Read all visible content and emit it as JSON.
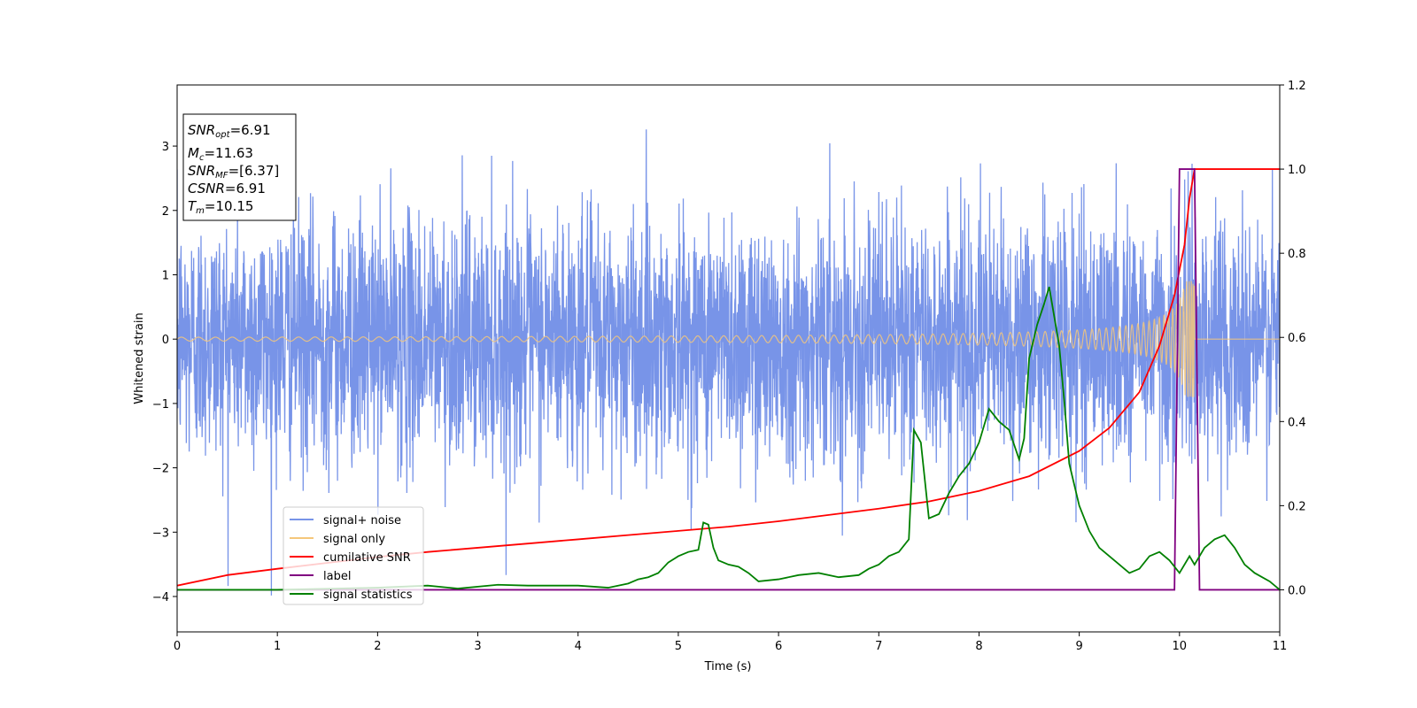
{
  "chart_data": {
    "type": "line",
    "xlabel": "Time (s)",
    "ylabel": "Whitened strain",
    "xlim": [
      0,
      11
    ],
    "ylim": [
      -4.55,
      3.95
    ],
    "y2lim": [
      -0.1,
      1.2
    ],
    "x_ticks": [
      0,
      1,
      2,
      3,
      4,
      5,
      6,
      7,
      8,
      9,
      10,
      11
    ],
    "y_ticks": [
      -4,
      -3,
      -2,
      -1,
      0,
      1,
      2,
      3
    ],
    "y_tick_labels": [
      "−4",
      "−3",
      "−2",
      "−1",
      "0",
      "1",
      "2",
      "3"
    ],
    "y2_ticks": [
      0.0,
      0.2,
      0.4,
      0.6,
      0.8,
      1.0,
      1.2
    ],
    "y2_tick_labels": [
      "0.0",
      "0.2",
      "0.4",
      "0.6",
      "0.8",
      "1.0",
      "1.2"
    ],
    "grid": false,
    "legend_position": "lower-left",
    "annotations": {
      "snr_opt": {
        "base": "SNR",
        "sub": "opt",
        "value": "=6.91"
      },
      "mc": {
        "base": "M",
        "sub": "c",
        "value": "=11.63"
      },
      "snr_mf": {
        "base": "SNR",
        "sub": "MF",
        "value": "=[6.37]"
      },
      "csnr": {
        "base": "CSNR",
        "sub": "",
        "value": "=6.91"
      },
      "tm": {
        "base": "T",
        "sub": "m",
        "value": "=10.15"
      }
    },
    "series": [
      {
        "name": "signal+ noise",
        "color": "#7894e8",
        "axis": "left",
        "kind": "noise",
        "std": 0.95
      },
      {
        "name": "signal only",
        "color": "#f5c77a",
        "axis": "left",
        "kind": "chirp",
        "merger": 10.15
      },
      {
        "name": "cumilative SNR",
        "color": "#ff0000",
        "axis": "right",
        "x": [
          0,
          0.5,
          1,
          1.5,
          2,
          2.5,
          3,
          3.5,
          4,
          4.5,
          5,
          5.5,
          6,
          6.5,
          7,
          7.5,
          8,
          8.5,
          9,
          9.3,
          9.6,
          9.8,
          9.95,
          10.05,
          10.1,
          10.15,
          10.5,
          11
        ],
        "y": [
          0.01,
          0.035,
          0.05,
          0.064,
          0.078,
          0.09,
          0.1,
          0.11,
          0.12,
          0.13,
          0.14,
          0.15,
          0.163,
          0.178,
          0.193,
          0.21,
          0.235,
          0.27,
          0.33,
          0.385,
          0.47,
          0.58,
          0.7,
          0.82,
          0.93,
          1.0,
          1.0,
          1.0
        ]
      },
      {
        "name": "label",
        "color": "#800080",
        "axis": "right",
        "x": [
          0,
          9.95,
          10.0,
          10.05,
          10.15,
          10.2,
          11
        ],
        "y": [
          0,
          0,
          1.0,
          1.0,
          1.0,
          0,
          0
        ]
      },
      {
        "name": "signal statistics",
        "color": "#008000",
        "axis": "right",
        "x": [
          0,
          1,
          2,
          2.5,
          2.8,
          3.2,
          3.5,
          4.0,
          4.3,
          4.5,
          4.6,
          4.7,
          4.8,
          4.9,
          5.0,
          5.1,
          5.2,
          5.25,
          5.3,
          5.35,
          5.4,
          5.5,
          5.6,
          5.7,
          5.8,
          6.0,
          6.2,
          6.4,
          6.6,
          6.8,
          6.9,
          7.0,
          7.1,
          7.2,
          7.3,
          7.35,
          7.42,
          7.5,
          7.6,
          7.7,
          7.8,
          7.9,
          8.0,
          8.1,
          8.2,
          8.3,
          8.4,
          8.45,
          8.5,
          8.58,
          8.65,
          8.7,
          8.75,
          8.8,
          8.85,
          8.9,
          9.0,
          9.1,
          9.2,
          9.3,
          9.4,
          9.5,
          9.6,
          9.7,
          9.8,
          9.9,
          10.0,
          10.1,
          10.15,
          10.25,
          10.35,
          10.45,
          10.55,
          10.65,
          10.75,
          10.9,
          11.0
        ],
        "y": [
          0.0,
          0.0,
          0.005,
          0.01,
          0.003,
          0.012,
          0.01,
          0.01,
          0.005,
          0.015,
          0.025,
          0.03,
          0.04,
          0.065,
          0.08,
          0.09,
          0.095,
          0.16,
          0.155,
          0.1,
          0.07,
          0.06,
          0.055,
          0.04,
          0.02,
          0.025,
          0.035,
          0.04,
          0.03,
          0.035,
          0.05,
          0.06,
          0.08,
          0.09,
          0.12,
          0.38,
          0.35,
          0.17,
          0.18,
          0.23,
          0.27,
          0.3,
          0.35,
          0.43,
          0.4,
          0.38,
          0.31,
          0.36,
          0.55,
          0.63,
          0.68,
          0.72,
          0.65,
          0.58,
          0.45,
          0.3,
          0.2,
          0.14,
          0.1,
          0.08,
          0.06,
          0.04,
          0.05,
          0.08,
          0.09,
          0.07,
          0.04,
          0.08,
          0.06,
          0.1,
          0.12,
          0.13,
          0.1,
          0.06,
          0.04,
          0.02,
          0.0
        ]
      }
    ]
  }
}
